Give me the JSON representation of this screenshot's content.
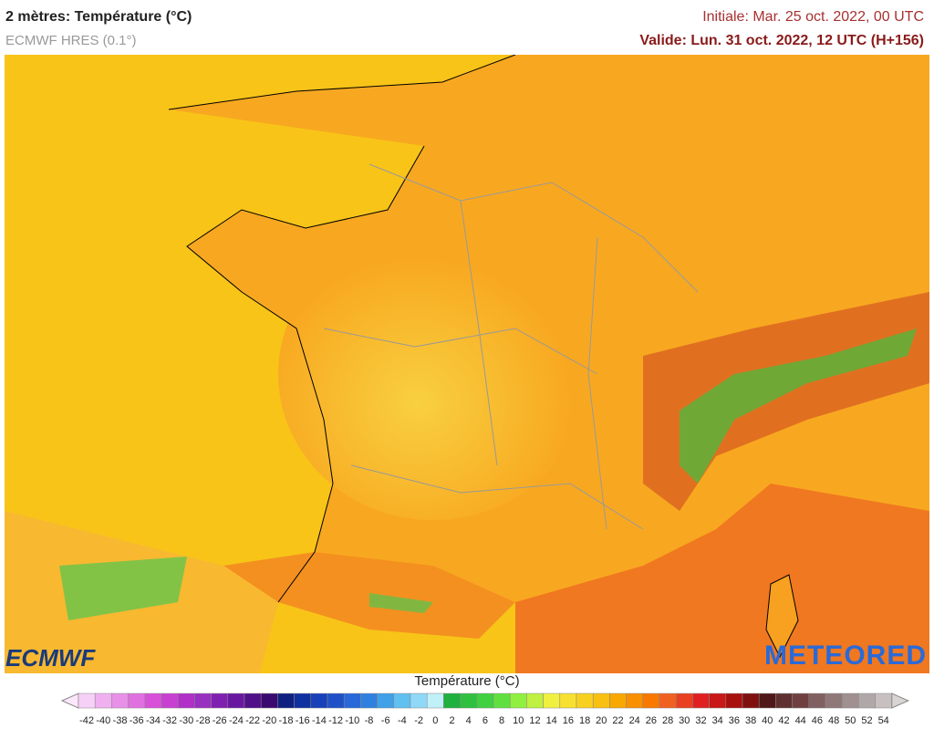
{
  "header": {
    "title": "2 mètres: Température (°C)",
    "subtitle": "ECMWF HRES (0.1°)",
    "initial": "Initiale: Mar. 25 oct. 2022, 00 UTC",
    "valid": "Valide: Lun. 31 oct. 2022, 12 UTC (H+156)"
  },
  "logos": {
    "left": "ECMWF",
    "right": "METEORED"
  },
  "legend": {
    "title": "Température (°C)",
    "ticks": [
      -42,
      -40,
      -38,
      -36,
      -34,
      -32,
      -30,
      -28,
      -26,
      -24,
      -22,
      -20,
      -18,
      -16,
      -14,
      -12,
      -10,
      -8,
      -6,
      -4,
      -2,
      0,
      2,
      4,
      6,
      8,
      10,
      12,
      14,
      16,
      18,
      20,
      22,
      24,
      26,
      28,
      30,
      32,
      34,
      36,
      38,
      40,
      42,
      44,
      46,
      48,
      50,
      52,
      54
    ],
    "colors": [
      "#f7d0f7",
      "#f0b0f0",
      "#e890e8",
      "#e070e0",
      "#d850d8",
      "#c840d0",
      "#b030c8",
      "#9830c0",
      "#8020b0",
      "#6818a0",
      "#501088",
      "#3a0a70",
      "#102080",
      "#1030a0",
      "#1840b8",
      "#2050c8",
      "#2868d8",
      "#3080e0",
      "#40a0e8",
      "#60c0f0",
      "#90d8f8",
      "#c0f0f8",
      "#20b040",
      "#30c040",
      "#40d040",
      "#60e040",
      "#90f040",
      "#c0f040",
      "#f0f040",
      "#f8e030",
      "#f8d020",
      "#f8c010",
      "#f8a800",
      "#f89000",
      "#f87800",
      "#f06020",
      "#e84020",
      "#e02020",
      "#c81818",
      "#a81010",
      "#801010",
      "#501818",
      "#603030",
      "#704040",
      "#806060",
      "#907878",
      "#a09090",
      "#b0a8a8",
      "#c8c0c0"
    ]
  }
}
